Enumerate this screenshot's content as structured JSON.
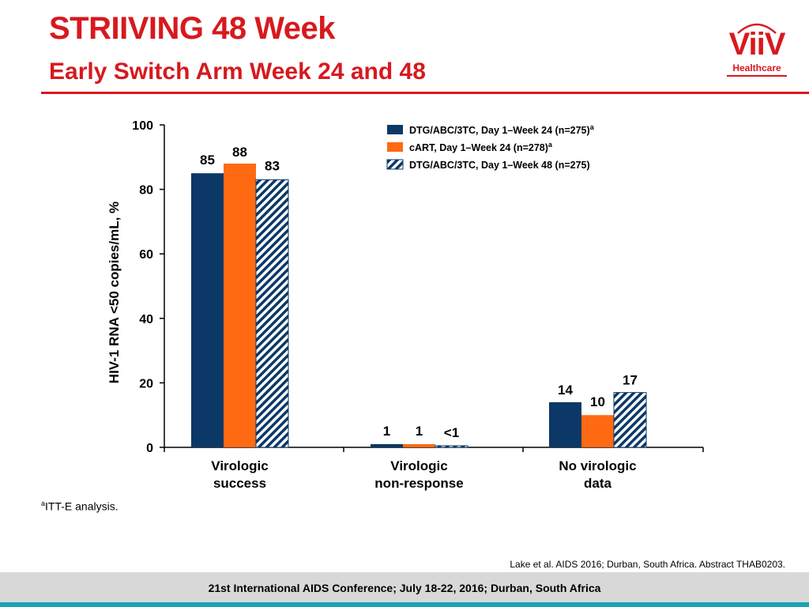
{
  "header": {
    "title": "STRIIVING 48 Week",
    "subtitle": "Early Switch Arm Week 24 and 48"
  },
  "logo": {
    "word": "ViiV",
    "sub": "Healthcare"
  },
  "colors": {
    "brand_red": "#d7191f",
    "navy": "#0b3866",
    "orange": "#ff6a13",
    "hatch_bg": "#ffffff",
    "hatch_line": "#0b3866",
    "footer_gray": "#d8d8d8",
    "footer_teal": "#1ba3b4"
  },
  "chart_data": {
    "type": "bar",
    "title": "",
    "ylabel": "HIV-1 RNA <50 copies/mL, %",
    "xlabel": "",
    "ylim": [
      0,
      100
    ],
    "yticks": [
      0,
      20,
      40,
      60,
      80,
      100
    ],
    "categories": [
      [
        "Virologic",
        "success"
      ],
      [
        "Virologic",
        "non-response"
      ],
      [
        "No virologic",
        "data"
      ]
    ],
    "series": [
      {
        "name": "DTG/ABC/3TC, Day 1–Week 24 (n=275)",
        "sup": "a",
        "style": "navy",
        "values": [
          85,
          1,
          14
        ],
        "labels": [
          "85",
          "1",
          "14"
        ]
      },
      {
        "name": "cART, Day 1–Week 24 (n=278)",
        "sup": "a",
        "style": "orange",
        "values": [
          88,
          1,
          10
        ],
        "labels": [
          "88",
          "1",
          "10"
        ]
      },
      {
        "name": "DTG/ABC/3TC, Day 1–Week 48 (n=275)",
        "sup": "",
        "style": "hatched",
        "values": [
          83,
          0.5,
          17
        ],
        "labels": [
          "83",
          "<1",
          "17"
        ]
      }
    ],
    "legend_position": "top-right"
  },
  "footnote": {
    "sup": "a",
    "text": "ITT-E analysis."
  },
  "reference": "Lake et al. AIDS 2016; Durban, South Africa. Abstract THAB0203.",
  "footer": "21st International AIDS Conference; July 18-22, 2016; Durban, South Africa"
}
